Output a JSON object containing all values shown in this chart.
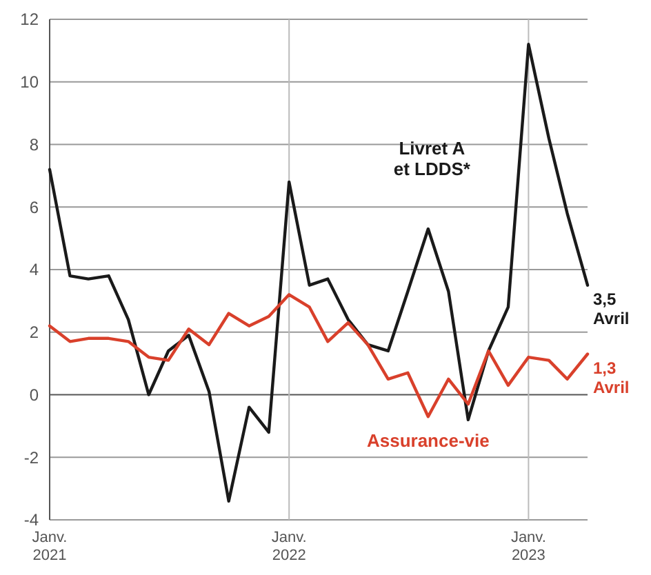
{
  "chart_data": {
    "type": "line",
    "x": [
      "2021-01",
      "2021-02",
      "2021-03",
      "2021-04",
      "2021-05",
      "2021-06",
      "2021-07",
      "2021-08",
      "2021-09",
      "2021-10",
      "2021-11",
      "2021-12",
      "2022-01",
      "2022-02",
      "2022-03",
      "2022-04",
      "2022-05",
      "2022-06",
      "2022-07",
      "2022-08",
      "2022-09",
      "2022-10",
      "2022-11",
      "2022-12",
      "2023-01",
      "2023-02",
      "2023-03",
      "2023-04"
    ],
    "series": [
      {
        "name": "Livret A et LDDS*",
        "color": "#1a1a1a",
        "values": [
          7.2,
          3.8,
          3.7,
          3.8,
          2.4,
          0.0,
          1.4,
          1.9,
          0.1,
          -3.4,
          -0.4,
          -1.2,
          6.8,
          3.5,
          3.7,
          2.4,
          1.6,
          1.4,
          3.3,
          5.3,
          3.3,
          -0.8,
          1.4,
          2.8,
          11.2,
          8.2,
          5.8,
          3.5
        ]
      },
      {
        "name": "Assurance-vie",
        "color": "#d9402b",
        "values": [
          2.2,
          1.7,
          1.8,
          1.8,
          1.7,
          1.2,
          1.1,
          2.1,
          1.6,
          2.6,
          2.2,
          2.5,
          3.2,
          2.8,
          1.7,
          2.3,
          1.6,
          0.5,
          0.7,
          -0.7,
          0.5,
          -0.3,
          1.4,
          0.3,
          1.2,
          1.1,
          0.5,
          1.3
        ]
      }
    ],
    "xlim": [
      "2021-01",
      "2023-04"
    ],
    "xticks": [
      {
        "value": "2021-01",
        "label": "Janv. 2021"
      },
      {
        "value": "2022-01",
        "label": "Janv. 2022"
      },
      {
        "value": "2023-01",
        "label": "Janv. 2023"
      }
    ],
    "ylim": [
      -4,
      12
    ],
    "yticks": [
      -4,
      -2,
      0,
      2,
      4,
      6,
      8,
      10,
      12
    ],
    "grid": true,
    "annotations": [
      {
        "text": "3,5 Avril",
        "x": "2023-04",
        "y": 3.5
      },
      {
        "text": "1,3 Avril",
        "x": "2023-04",
        "y": 1.3
      }
    ]
  }
}
